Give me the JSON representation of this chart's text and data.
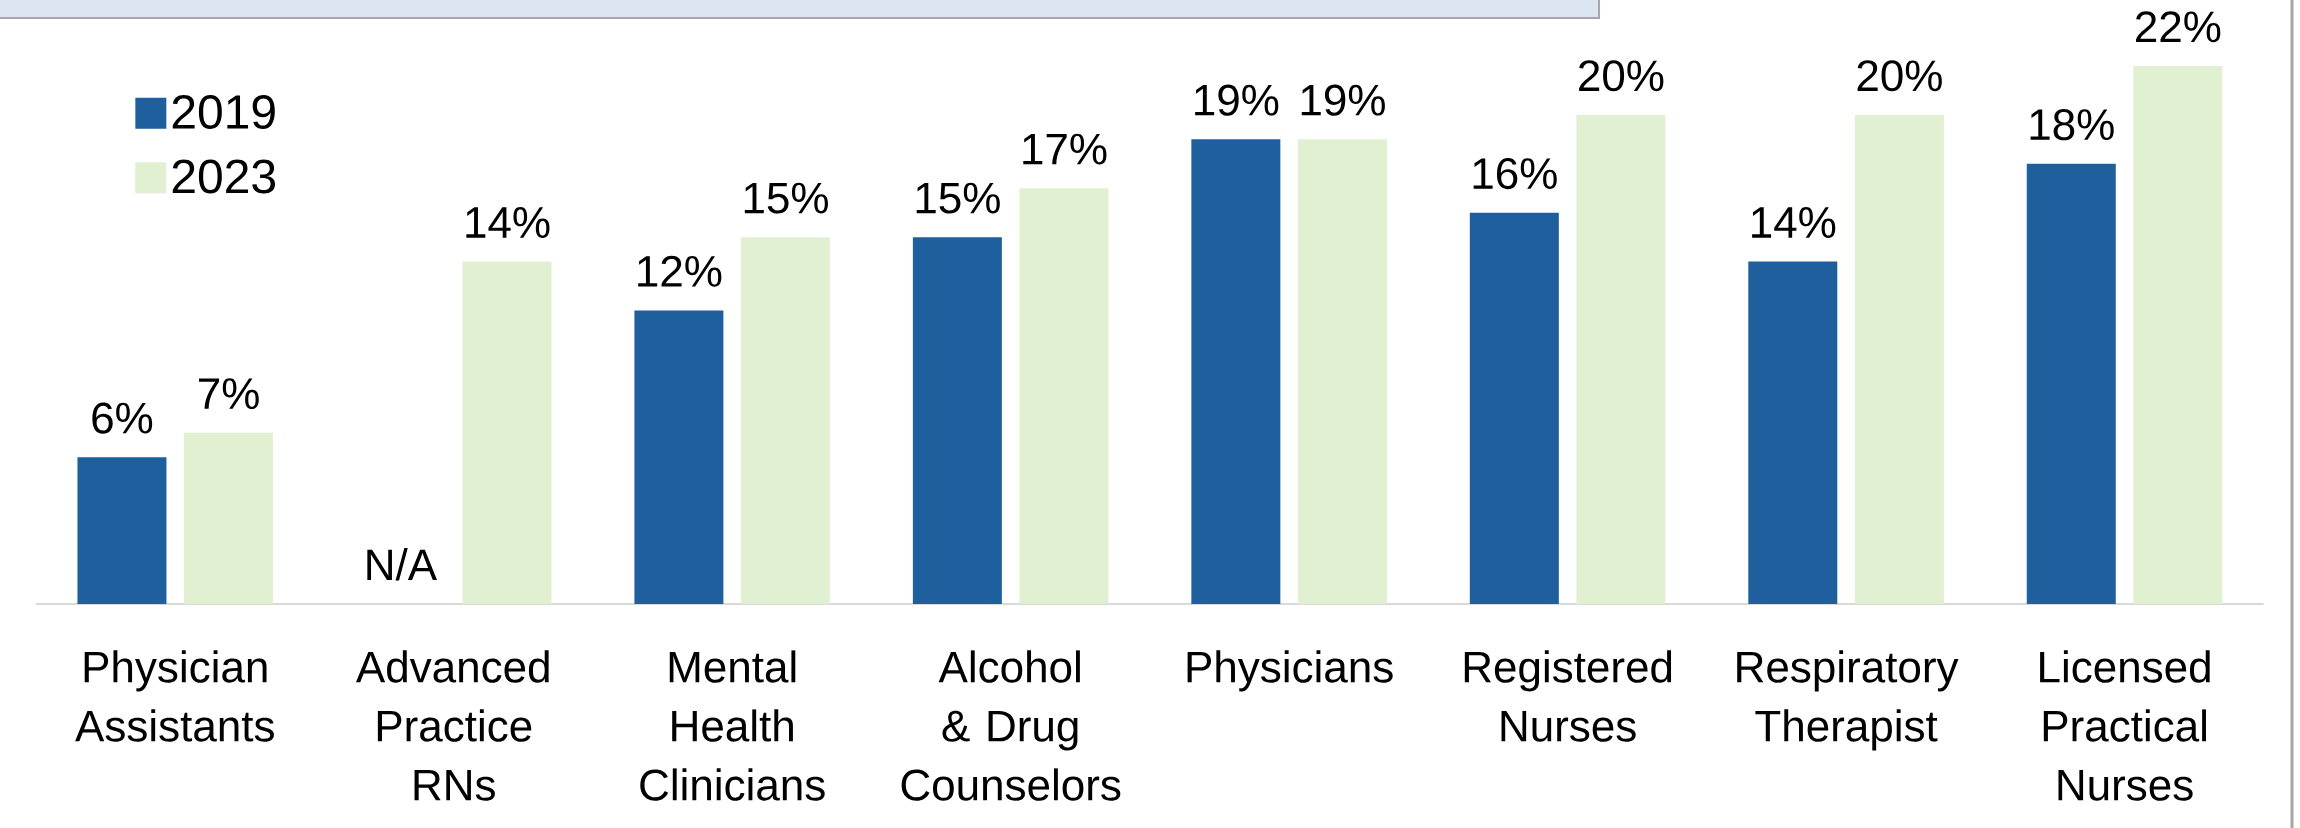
{
  "chart_data": {
    "type": "bar",
    "categories": [
      "Physician Assistants",
      "Advanced Practice RNs",
      "Mental Health Clinicians",
      "Alcohol & Drug Counselors",
      "Physicians",
      "Registered Nurses",
      "Respiratory Therapist",
      "Licensed Practical Nurses"
    ],
    "series": [
      {
        "name": "2019",
        "color": "#1f5f9e",
        "values": [
          6,
          null,
          12,
          15,
          19,
          16,
          14,
          18
        ],
        "value_labels": [
          "6%",
          "N/A",
          "12%",
          "15%",
          "19%",
          "16%",
          "14%",
          "18%"
        ]
      },
      {
        "name": "2023",
        "color": "#e0f0d0",
        "values": [
          7,
          14,
          15,
          17,
          19,
          20,
          20,
          22
        ],
        "value_labels": [
          "7%",
          "14%",
          "15%",
          "17%",
          "19%",
          "20%",
          "20%",
          "22%"
        ]
      }
    ],
    "legend": "top left"
  }
}
